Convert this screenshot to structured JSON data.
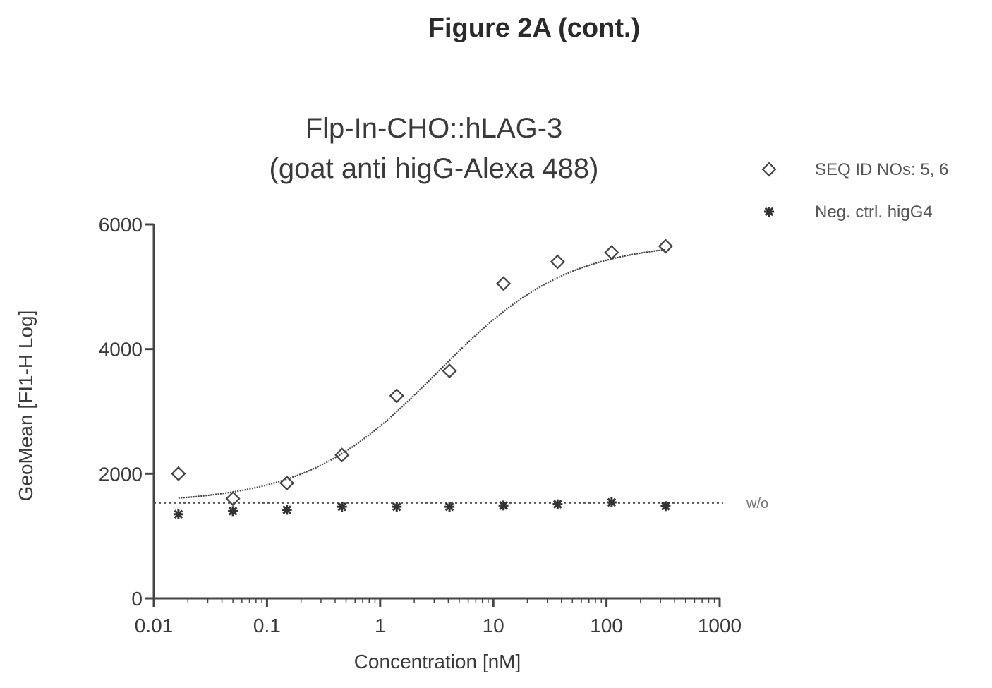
{
  "figure_title": "Figure 2A (cont.)",
  "chart_data": {
    "type": "scatter",
    "title": "Flp-In-CHO::hLAG-3",
    "subtitle": "(goat anti higG-Alexa 488)",
    "xlabel": "Concentration [nM]",
    "ylabel": "GeoMean [FI1-H Log]",
    "x_scale": "log",
    "xlim": [
      0.01,
      1000
    ],
    "ylim": [
      0,
      6000
    ],
    "x_ticks": [
      "0.01",
      "0.1",
      "1",
      "10",
      "100",
      "1000"
    ],
    "y_ticks": [
      "0",
      "2000",
      "4000",
      "6000"
    ],
    "legend_position": "right",
    "series": [
      {
        "name": "SEQ ID NOs: 5, 6",
        "marker": "open-diamond",
        "color": "#333333",
        "x": [
          0.0165,
          0.05,
          0.15,
          0.46,
          1.4,
          4.1,
          12.3,
          37,
          111,
          333
        ],
        "y": [
          2000,
          1600,
          1850,
          2300,
          3250,
          3650,
          5050,
          5400,
          5550,
          5650
        ],
        "fit": "sigmoidal"
      },
      {
        "name": "Neg. ctrl. higG4",
        "marker": "filled-star",
        "color": "#333333",
        "x": [
          0.0165,
          0.05,
          0.15,
          0.46,
          1.4,
          4.1,
          12.3,
          37,
          111,
          333
        ],
        "y": [
          1350,
          1400,
          1420,
          1470,
          1470,
          1470,
          1490,
          1510,
          1540,
          1480
        ]
      }
    ],
    "baseline": {
      "y": 1530,
      "label": "w/o"
    }
  }
}
